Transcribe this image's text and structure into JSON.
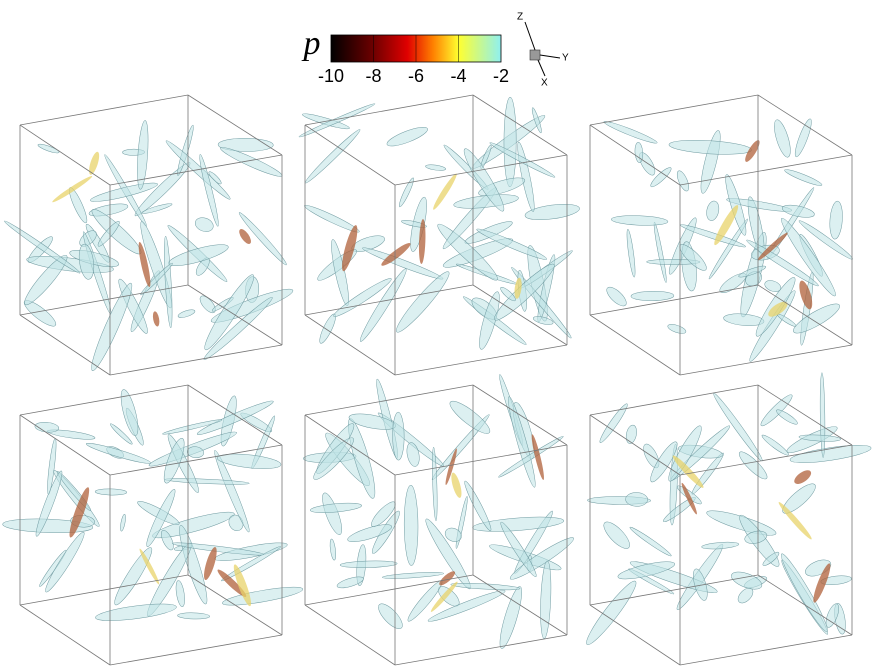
{
  "colorbar": {
    "label": "p",
    "lim": [
      -10,
      -2
    ],
    "ticks": [
      -10,
      -8,
      -6,
      -4,
      -2
    ]
  },
  "axes": {
    "z": "Z",
    "y": "Y",
    "x": "X"
  }
}
